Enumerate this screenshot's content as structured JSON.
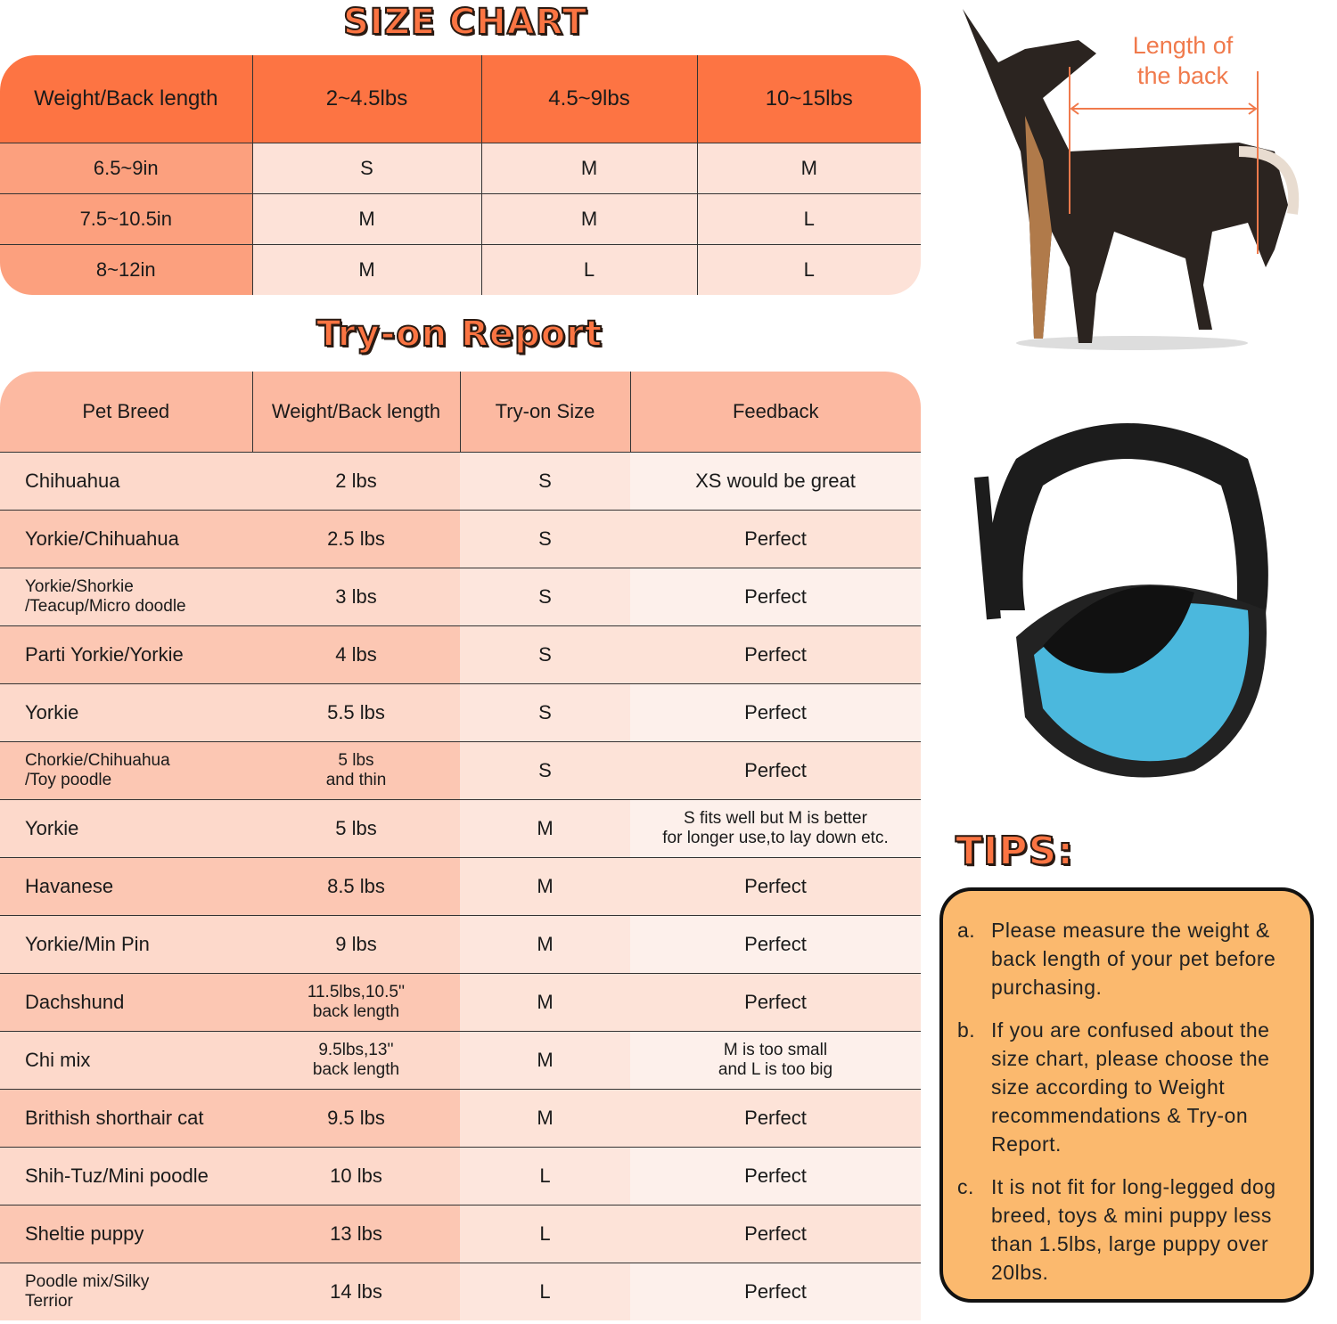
{
  "size_chart": {
    "title": "SIZE CHART",
    "headers": [
      "Weight/Back length",
      "2~4.5lbs",
      "4.5~9lbs",
      "10~15lbs"
    ],
    "rows": [
      [
        "6.5~9in",
        "S",
        "M",
        "M"
      ],
      [
        "7.5~10.5in",
        "M",
        "M",
        "L"
      ],
      [
        "8~12in",
        "M",
        "L",
        "L"
      ]
    ],
    "colors": {
      "header": "#fd7443",
      "first_column": "#fca07e",
      "cells": "#fde2d8"
    }
  },
  "try_on_report": {
    "title": "Try-on Report",
    "headers": [
      "Pet Breed",
      "Weight/Back length",
      "Try-on Size",
      "Feedback"
    ],
    "rows": [
      [
        "Chihuahua",
        "2 lbs",
        "S",
        "XS would be great"
      ],
      [
        "Yorkie/Chihuahua",
        "2.5 lbs",
        "S",
        "Perfect"
      ],
      [
        "Yorkie/Shorkie\n/Teacup/Micro doodle",
        "3 lbs",
        "S",
        "Perfect"
      ],
      [
        "Parti Yorkie/Yorkie",
        "4 lbs",
        "S",
        "Perfect"
      ],
      [
        "Yorkie",
        "5.5 lbs",
        "S",
        "Perfect"
      ],
      [
        "Chorkie/Chihuahua\n/Toy poodle",
        "5 lbs\nand thin",
        "S",
        "Perfect"
      ],
      [
        "Yorkie",
        "5 lbs",
        "M",
        "S fits well but M is better\nfor longer use,to lay down etc."
      ],
      [
        "Havanese",
        "8.5 lbs",
        "M",
        "Perfect"
      ],
      [
        "Yorkie/Min Pin",
        "9 lbs",
        "M",
        "Perfect"
      ],
      [
        "Dachshund",
        "11.5lbs,10.5''\nback length",
        "M",
        "Perfect"
      ],
      [
        "Chi mix",
        "9.5lbs,13''\nback length",
        "M",
        "M is too small\nand L is too big"
      ],
      [
        "Brithish shorthair cat",
        "9.5 lbs",
        "M",
        "Perfect"
      ],
      [
        "Shih-Tuz/Mini poodle",
        "10 lbs",
        "L",
        "Perfect"
      ],
      [
        "Sheltie puppy",
        "13 lbs",
        "L",
        "Perfect"
      ],
      [
        "Poodle mix/Silky\n Terrior",
        "14 lbs",
        "L",
        "Perfect"
      ]
    ]
  },
  "dog_image": {
    "measure_label": "Length of\nthe back"
  },
  "tips": {
    "title": "TIPS:",
    "items": [
      {
        "label": "a.",
        "text": "Please measure the weight & back length of your pet before purchasing."
      },
      {
        "label": "b.",
        "text": "If you are confused about the size chart, please choose the size according to Weight recommendations & Try-on Report."
      },
      {
        "label": "c.",
        "text": "It is not fit for long-legged dog breed, toys & mini puppy less than 1.5lbs, large puppy over 20lbs."
      }
    ],
    "box_color": "#fbb96e"
  }
}
